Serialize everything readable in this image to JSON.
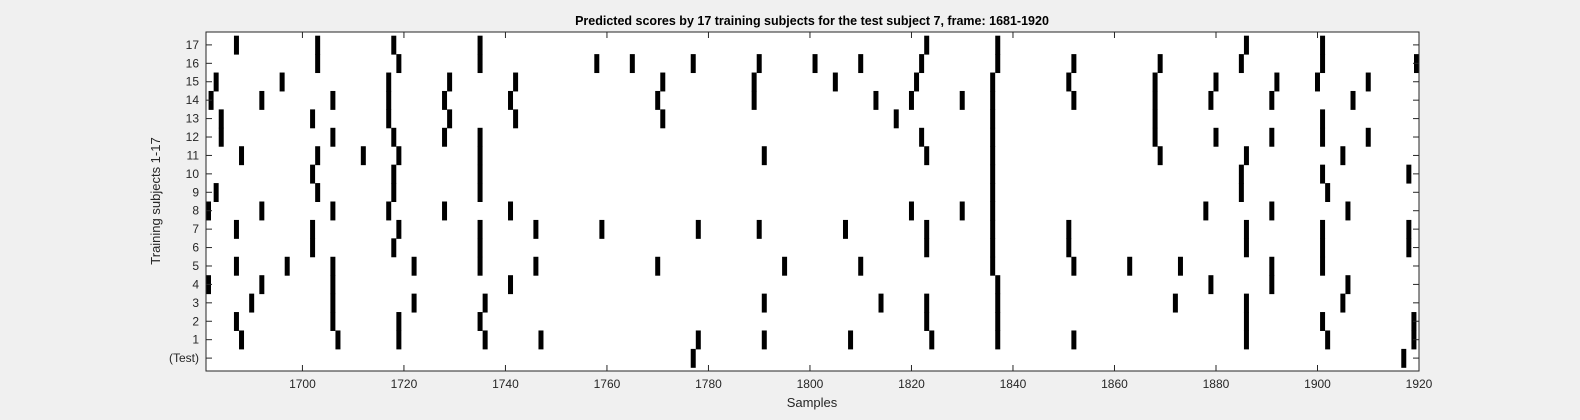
{
  "chart_data": {
    "type": "raster",
    "title": "Predicted scores by 17 training subjects for the test subject 7, frame: 1681-1920",
    "xlabel": "Samples",
    "ylabel": "Training subjects 1-17",
    "xlim": [
      1681,
      1920
    ],
    "xticks": [
      1700,
      1720,
      1740,
      1760,
      1780,
      1800,
      1820,
      1840,
      1860,
      1880,
      1900,
      1920
    ],
    "row_labels": [
      "(Test)",
      "1",
      "2",
      "3",
      "4",
      "5",
      "6",
      "7",
      "8",
      "9",
      "10",
      "11",
      "12",
      "13",
      "14",
      "15",
      "16",
      "17"
    ],
    "grid": false,
    "legend": "none",
    "colors": {
      "background": "#ffffff",
      "event": "#000000",
      "axis": "#262626",
      "figure": "#f0f0f0"
    },
    "rows": [
      {
        "label": "(Test)",
        "events": [
          1777,
          1917
        ]
      },
      {
        "label": "1",
        "events": [
          1688,
          1707,
          1719,
          1736,
          1747,
          1778,
          1791,
          1808,
          1824,
          1837,
          1852,
          1886,
          1902,
          1919
        ]
      },
      {
        "label": "2",
        "events": [
          1687,
          1706,
          1719,
          1735,
          1823,
          1837,
          1886,
          1901,
          1919
        ]
      },
      {
        "label": "3",
        "events": [
          1690,
          1706,
          1722,
          1736,
          1791,
          1814,
          1823,
          1837,
          1872,
          1886,
          1905
        ]
      },
      {
        "label": "4",
        "events": [
          1681,
          1692,
          1706,
          1741,
          1837,
          1879,
          1891,
          1906
        ]
      },
      {
        "label": "5",
        "events": [
          1687,
          1697,
          1706,
          1722,
          1735,
          1746,
          1770,
          1795,
          1810,
          1836,
          1852,
          1863,
          1873,
          1891,
          1901
        ]
      },
      {
        "label": "6",
        "events": [
          1702,
          1718,
          1735,
          1823,
          1836,
          1851,
          1886,
          1901,
          1918
        ]
      },
      {
        "label": "7",
        "events": [
          1687,
          1702,
          1719,
          1735,
          1746,
          1759,
          1778,
          1790,
          1807,
          1823,
          1836,
          1851,
          1886,
          1901,
          1918
        ]
      },
      {
        "label": "8",
        "events": [
          1681,
          1692,
          1706,
          1717,
          1728,
          1741,
          1820,
          1830,
          1836,
          1878,
          1891,
          1906
        ]
      },
      {
        "label": "9",
        "events": [
          1683,
          1703,
          1718,
          1735,
          1836,
          1885,
          1902
        ]
      },
      {
        "label": "10",
        "events": [
          1702,
          1718,
          1735,
          1836,
          1885,
          1901,
          1918
        ]
      },
      {
        "label": "11",
        "events": [
          1688,
          1703,
          1712,
          1719,
          1735,
          1791,
          1823,
          1836,
          1869,
          1886,
          1905
        ]
      },
      {
        "label": "12",
        "events": [
          1684,
          1706,
          1718,
          1728,
          1735,
          1822,
          1836,
          1868,
          1880,
          1891,
          1901,
          1910
        ]
      },
      {
        "label": "13",
        "events": [
          1684,
          1702,
          1717,
          1729,
          1742,
          1771,
          1817,
          1836,
          1868,
          1901
        ]
      },
      {
        "label": "14",
        "events": [
          1682,
          1692,
          1706,
          1717,
          1728,
          1741,
          1770,
          1789,
          1813,
          1820,
          1830,
          1836,
          1852,
          1868,
          1879,
          1891,
          1907
        ]
      },
      {
        "label": "15",
        "events": [
          1683,
          1696,
          1717,
          1729,
          1742,
          1771,
          1789,
          1805,
          1821,
          1836,
          1851,
          1868,
          1880,
          1892,
          1900,
          1910
        ]
      },
      {
        "label": "16",
        "events": [
          1703,
          1719,
          1735,
          1758,
          1765,
          1777,
          1790,
          1801,
          1810,
          1822,
          1837,
          1852,
          1869,
          1885,
          1901,
          1920
        ]
      },
      {
        "label": "17",
        "events": [
          1687,
          1703,
          1718,
          1735,
          1823,
          1837,
          1886,
          1901
        ]
      }
    ]
  }
}
